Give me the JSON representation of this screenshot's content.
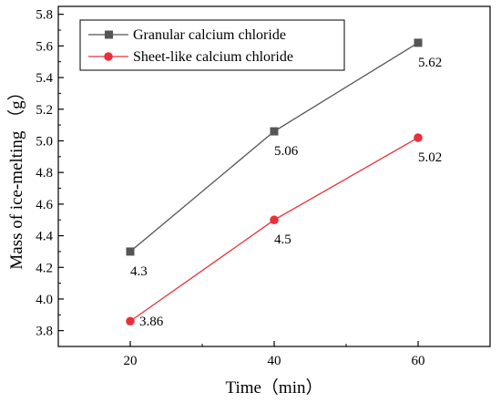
{
  "chart_data": {
    "type": "line",
    "title": "",
    "xlabel": "Time（min）",
    "ylabel": "Mass of ice-melting （g）",
    "x": [
      20,
      40,
      60
    ],
    "xticks": [
      "20",
      "40",
      "60"
    ],
    "yticks": [
      "3.8",
      "4.0",
      "4.2",
      "4.4",
      "4.6",
      "4.8",
      "5.0",
      "5.2",
      "5.4",
      "5.6",
      "5.8"
    ],
    "xlim": [
      10,
      70
    ],
    "ylim": [
      3.7,
      5.85
    ],
    "grid": false,
    "legend_position": "top-left",
    "series": [
      {
        "name": "Granular calcium chloride",
        "values": [
          4.3,
          5.06,
          5.62
        ],
        "labels": [
          "4.3",
          "5.06",
          "5.62"
        ],
        "color": "#555555",
        "marker": "square"
      },
      {
        "name": "Sheet-like calcium chloride",
        "values": [
          3.86,
          4.5,
          5.02
        ],
        "labels": [
          "3.86",
          "4.5",
          "5.02"
        ],
        "color": "#e8303a",
        "marker": "circle"
      }
    ]
  }
}
